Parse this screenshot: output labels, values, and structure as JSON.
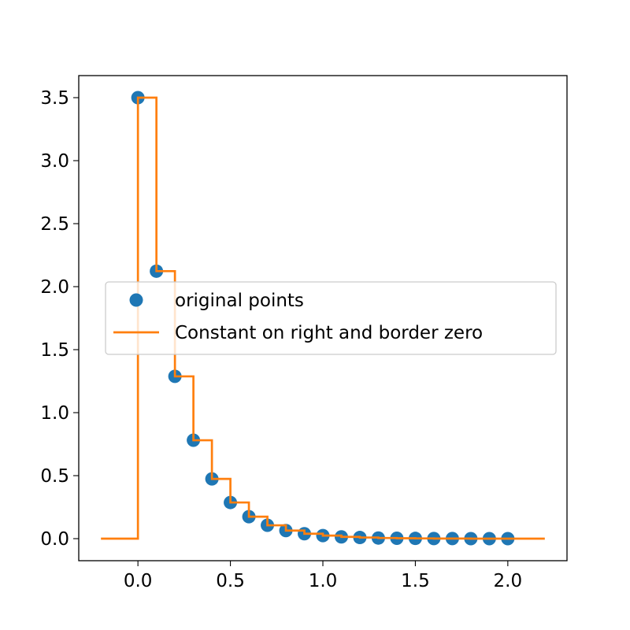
{
  "chart_data": {
    "type": "line",
    "title": "",
    "xlabel": "",
    "ylabel": "",
    "xlim": [
      -0.32,
      2.32
    ],
    "ylim": [
      -0.175,
      3.675
    ],
    "x_ticks": [
      0.0,
      0.5,
      1.0,
      1.5,
      2.0
    ],
    "x_tick_labels": [
      "0.0",
      "0.5",
      "1.0",
      "1.5",
      "2.0"
    ],
    "y_ticks": [
      0.0,
      0.5,
      1.0,
      1.5,
      2.0,
      2.5,
      3.0,
      3.5
    ],
    "y_tick_labels": [
      "0.0",
      "0.5",
      "1.0",
      "1.5",
      "2.0",
      "2.5",
      "3.0",
      "3.5"
    ],
    "grid": false,
    "legend_position": "center-left",
    "series": [
      {
        "name": "original points",
        "kind": "scatter",
        "color": "#1f77b4",
        "x": [
          0.0,
          0.1,
          0.2,
          0.3,
          0.4,
          0.5,
          0.6,
          0.7,
          0.8,
          0.9,
          1.0,
          1.1,
          1.2,
          1.3,
          1.4,
          1.5,
          1.6,
          1.7,
          1.8,
          1.9,
          2.0
        ],
        "y": [
          3.5,
          2.123,
          1.288,
          0.781,
          0.474,
          0.287,
          0.174,
          0.106,
          0.064,
          0.039,
          0.024,
          0.014,
          0.009,
          0.005,
          0.003,
          0.002,
          0.001,
          0.001,
          0.0,
          0.0,
          0.0
        ]
      },
      {
        "name": "Constant on right and border zero",
        "kind": "step",
        "color": "#ff7f0e",
        "x": [
          -0.2,
          0.0,
          0.1,
          0.2,
          0.3,
          0.4,
          0.5,
          0.6,
          0.7,
          0.8,
          0.9,
          1.0,
          1.1,
          1.2,
          1.3,
          1.4,
          1.5,
          1.6,
          1.7,
          1.8,
          1.9,
          2.0,
          2.2
        ],
        "y": [
          0.0,
          3.5,
          2.123,
          1.288,
          0.781,
          0.474,
          0.287,
          0.174,
          0.106,
          0.064,
          0.039,
          0.024,
          0.014,
          0.009,
          0.005,
          0.003,
          0.002,
          0.001,
          0.001,
          0.0,
          0.0,
          0.0,
          0.0
        ]
      }
    ]
  }
}
